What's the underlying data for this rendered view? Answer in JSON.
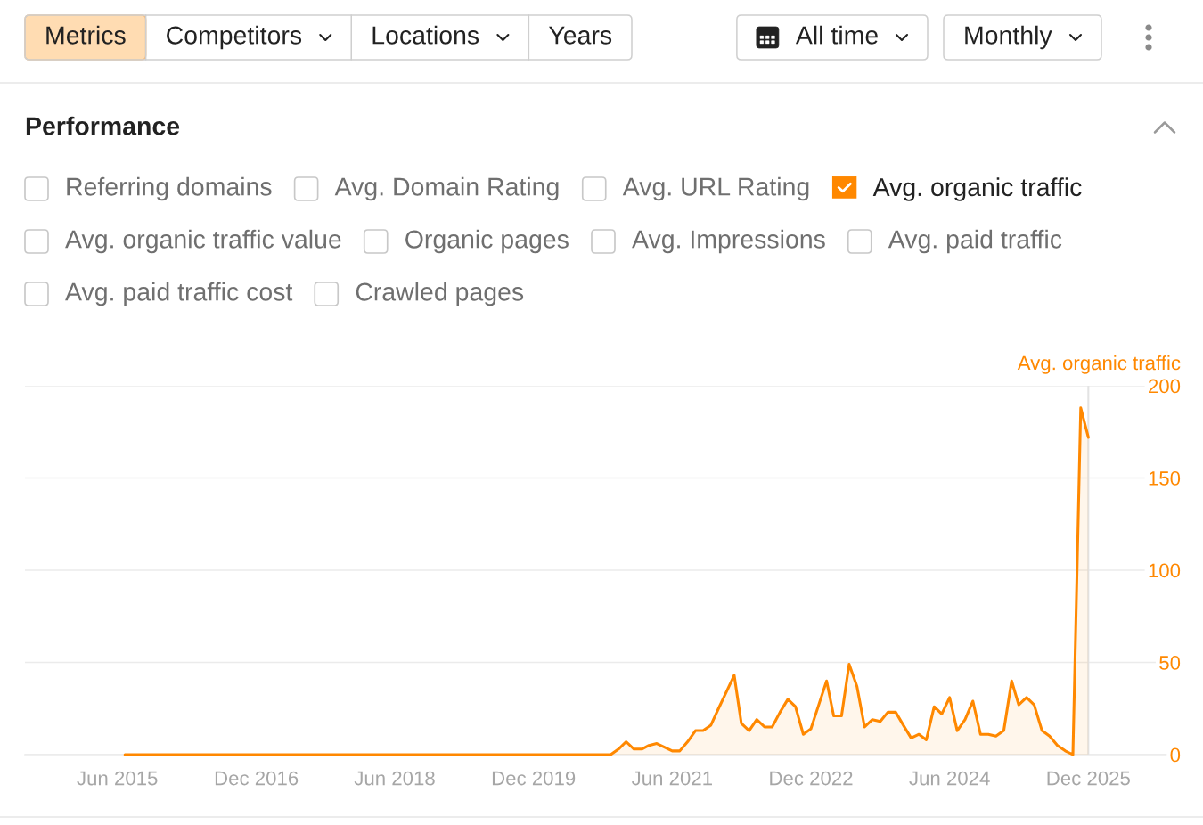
{
  "chart_data": {
    "type": "area",
    "title": "Performance",
    "ylabel": "Avg. organic traffic",
    "annotations": [
      "Metrics",
      "Competitors",
      "Locations",
      "Years",
      "All time",
      "Monthly",
      "Referring domains",
      "Avg. Domain Rating",
      "Avg. URL Rating",
      "Avg. organic traffic value",
      "Organic pages",
      "Avg. Impressions",
      "Avg. paid traffic",
      "Avg. paid traffic cost",
      "Crawled pages"
    ],
    "x": [
      "2015-07",
      "2015-08",
      "2015-09",
      "2015-10",
      "2015-11",
      "2015-12",
      "2016-01",
      "2016-02",
      "2016-03",
      "2016-04",
      "2016-05",
      "2016-06",
      "2016-07",
      "2016-08",
      "2016-09",
      "2016-10",
      "2016-11",
      "2016-12",
      "2017-01",
      "2017-02",
      "2017-03",
      "2017-04",
      "2017-05",
      "2017-06",
      "2017-07",
      "2017-08",
      "2017-09",
      "2017-10",
      "2017-11",
      "2017-12",
      "2018-01",
      "2018-02",
      "2018-03",
      "2018-04",
      "2018-05",
      "2018-06",
      "2018-07",
      "2018-08",
      "2018-09",
      "2018-10",
      "2018-11",
      "2018-12",
      "2019-01",
      "2019-02",
      "2019-03",
      "2019-04",
      "2019-05",
      "2019-06",
      "2019-07",
      "2019-08",
      "2019-09",
      "2019-10",
      "2019-11",
      "2019-12",
      "2020-01",
      "2020-02",
      "2020-03",
      "2020-04",
      "2020-05",
      "2020-06",
      "2020-07",
      "2020-08",
      "2020-09",
      "2020-10",
      "2020-11",
      "2020-12",
      "2021-01",
      "2021-02",
      "2021-03",
      "2021-04",
      "2021-05",
      "2021-06",
      "2021-07",
      "2021-08",
      "2021-09",
      "2021-10",
      "2021-11",
      "2021-12",
      "2022-01",
      "2022-02",
      "2022-03",
      "2022-04",
      "2022-05",
      "2022-06",
      "2022-07",
      "2022-08",
      "2022-09",
      "2022-10",
      "2022-11",
      "2022-12",
      "2023-01",
      "2023-02",
      "2023-03",
      "2023-04",
      "2023-05",
      "2023-06",
      "2023-07",
      "2023-08",
      "2023-09",
      "2023-10",
      "2023-11",
      "2023-12",
      "2024-01",
      "2024-02",
      "2024-03",
      "2024-04",
      "2024-05",
      "2024-06",
      "2024-07",
      "2024-08",
      "2024-09",
      "2024-10",
      "2024-11",
      "2024-12",
      "2025-01",
      "2025-02",
      "2025-03",
      "2025-04",
      "2025-05",
      "2025-06",
      "2025-07",
      "2025-08",
      "2025-09",
      "2025-10",
      "2025-11",
      "2025-12"
    ],
    "series": [
      {
        "name": "Avg. organic traffic",
        "color": "#ff8800",
        "values": [
          0,
          0,
          0,
          0,
          0,
          0,
          0,
          0,
          0,
          0,
          0,
          0,
          0,
          0,
          0,
          0,
          0,
          0,
          0,
          0,
          0,
          0,
          0,
          0,
          0,
          0,
          0,
          0,
          0,
          0,
          0,
          0,
          0,
          0,
          0,
          0,
          0,
          0,
          0,
          0,
          0,
          0,
          0,
          0,
          0,
          0,
          0,
          0,
          0,
          0,
          0,
          0,
          0,
          0,
          0,
          0,
          0,
          0,
          0,
          0,
          0,
          0,
          0,
          0,
          3,
          7,
          3,
          3,
          5,
          6,
          4,
          2,
          2,
          7,
          13,
          13,
          16,
          25,
          34,
          43,
          17,
          13,
          19,
          15,
          15,
          23,
          30,
          26,
          11,
          14,
          27,
          40,
          21,
          21,
          49,
          37,
          15,
          19,
          18,
          23,
          23,
          16,
          9,
          11,
          8,
          26,
          22,
          31,
          13,
          19,
          29,
          11,
          11,
          10,
          13,
          40,
          27,
          31,
          27,
          13,
          10,
          5,
          2,
          0,
          188,
          172
        ]
      }
    ],
    "xlim": [
      "2014-06",
      "2026-12"
    ],
    "xticks": [
      {
        "value": "2015-06",
        "label": "Jun 2015"
      },
      {
        "value": "2016-12",
        "label": "Dec 2016"
      },
      {
        "value": "2018-06",
        "label": "Jun 2018"
      },
      {
        "value": "2019-12",
        "label": "Dec 2019"
      },
      {
        "value": "2021-06",
        "label": "Jun 2021"
      },
      {
        "value": "2022-12",
        "label": "Dec 2022"
      },
      {
        "value": "2024-06",
        "label": "Jun 2024"
      },
      {
        "value": "2025-12",
        "label": "Dec 2025"
      }
    ],
    "ylim": [
      0,
      200
    ],
    "yticks": [
      0,
      50,
      100,
      150,
      200
    ],
    "grid": "y",
    "legend": "top",
    "ref_lines": [
      {
        "axis": "x",
        "value": "2025-12",
        "color": "#e3e3e3"
      }
    ]
  }
}
